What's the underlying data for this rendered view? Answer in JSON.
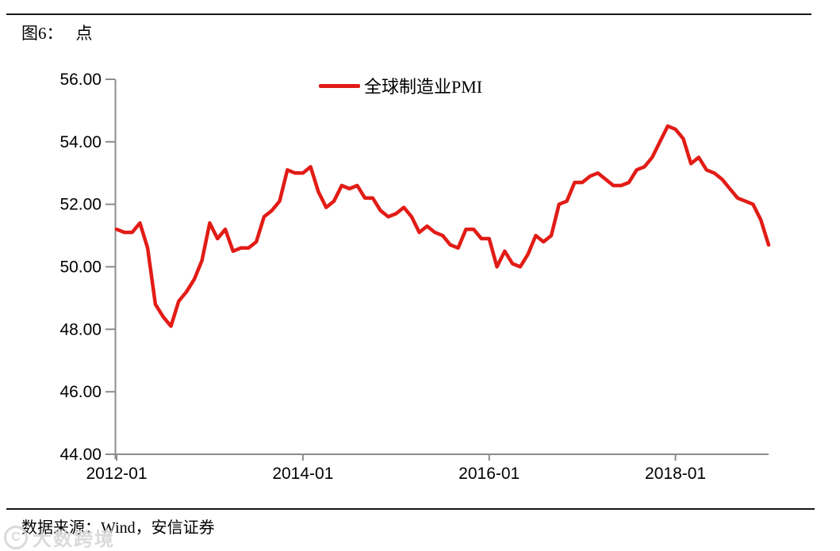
{
  "figure": {
    "label": "图6：",
    "unit": "点"
  },
  "legend": {
    "series_label": "全球制造业PMI"
  },
  "footer": {
    "source": "数据来源：Wind，安信证券"
  },
  "watermark": {
    "icon": "copyright-badge-icon",
    "icon_glyph": "C",
    "text": "大数跨境"
  },
  "colors": {
    "line": "#e21c16",
    "axis": "#8c8c8c",
    "text": "#000000",
    "rule": "#161616",
    "watermark": "#d7d7d7"
  },
  "chart_data": {
    "type": "line",
    "title": "图6：点",
    "xlabel": "",
    "ylabel": "点",
    "ylim": [
      44,
      56
    ],
    "y_ticks": [
      56,
      54,
      52,
      50,
      48,
      46,
      44
    ],
    "y_tick_labels": [
      "56.00",
      "54.00",
      "52.00",
      "50.00",
      "48.00",
      "46.00",
      "44.00"
    ],
    "x_tick_labels": [
      "2012-01",
      "2014-01",
      "2016-01",
      "2018-01"
    ],
    "grid": false,
    "legend_position": "top-center",
    "series": [
      {
        "name": "全球制造业PMI",
        "color": "#e21c16",
        "x": [
          "2012-01",
          "2012-02",
          "2012-03",
          "2012-04",
          "2012-05",
          "2012-06",
          "2012-07",
          "2012-08",
          "2012-09",
          "2012-10",
          "2012-11",
          "2012-12",
          "2013-01",
          "2013-02",
          "2013-03",
          "2013-04",
          "2013-05",
          "2013-06",
          "2013-07",
          "2013-08",
          "2013-09",
          "2013-10",
          "2013-11",
          "2013-12",
          "2014-01",
          "2014-02",
          "2014-03",
          "2014-04",
          "2014-05",
          "2014-06",
          "2014-07",
          "2014-08",
          "2014-09",
          "2014-10",
          "2014-11",
          "2014-12",
          "2015-01",
          "2015-02",
          "2015-03",
          "2015-04",
          "2015-05",
          "2015-06",
          "2015-07",
          "2015-08",
          "2015-09",
          "2015-10",
          "2015-11",
          "2015-12",
          "2016-01",
          "2016-02",
          "2016-03",
          "2016-04",
          "2016-05",
          "2016-06",
          "2016-07",
          "2016-08",
          "2016-09",
          "2016-10",
          "2016-11",
          "2016-12",
          "2017-01",
          "2017-02",
          "2017-03",
          "2017-04",
          "2017-05",
          "2017-06",
          "2017-07",
          "2017-08",
          "2017-09",
          "2017-10",
          "2017-11",
          "2017-12",
          "2018-01",
          "2018-02",
          "2018-03",
          "2018-04",
          "2018-05",
          "2018-06",
          "2018-07",
          "2018-08",
          "2018-09",
          "2018-10",
          "2018-11",
          "2018-12",
          "2019-01"
        ],
        "values": [
          51.2,
          51.1,
          51.1,
          51.4,
          50.6,
          48.8,
          48.4,
          48.1,
          48.9,
          49.2,
          49.6,
          50.2,
          51.4,
          50.9,
          51.2,
          50.5,
          50.6,
          50.6,
          50.8,
          51.6,
          51.8,
          52.1,
          53.1,
          53.0,
          53.0,
          53.2,
          52.4,
          51.9,
          52.1,
          52.6,
          52.5,
          52.6,
          52.2,
          52.2,
          51.8,
          51.6,
          51.7,
          51.9,
          51.6,
          51.1,
          51.3,
          51.1,
          51.0,
          50.7,
          50.6,
          51.2,
          51.2,
          50.9,
          50.9,
          50.0,
          50.5,
          50.1,
          50.0,
          50.4,
          51.0,
          50.8,
          51.0,
          52.0,
          52.1,
          52.7,
          52.7,
          52.9,
          53.0,
          52.8,
          52.6,
          52.6,
          52.7,
          53.1,
          53.2,
          53.5,
          54.0,
          54.5,
          54.4,
          54.1,
          53.3,
          53.5,
          53.1,
          53.0,
          52.8,
          52.5,
          52.2,
          52.1,
          52.0,
          51.5,
          50.7
        ]
      }
    ]
  }
}
